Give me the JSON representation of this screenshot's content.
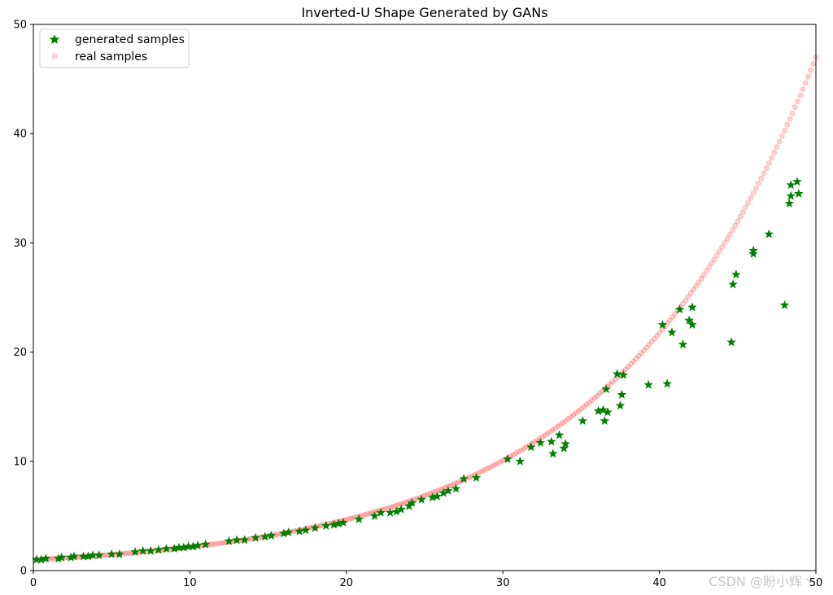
{
  "watermark": "CSDN @盼小辉丶",
  "chart_data": {
    "type": "scatter",
    "title": "Inverted-U Shape Generated by GANs",
    "xlim": [
      0,
      50
    ],
    "ylim": [
      0,
      50
    ],
    "xticks": [
      0,
      10,
      20,
      30,
      40,
      50
    ],
    "yticks": [
      0,
      10,
      20,
      30,
      40,
      50
    ],
    "grid": false,
    "legend_position": "top-left",
    "series": [
      {
        "name": "generated samples",
        "marker": "star",
        "color": "#008000",
        "points": [
          [
            0.2,
            1.0
          ],
          [
            0.5,
            1.0
          ],
          [
            0.8,
            1.1
          ],
          [
            1.6,
            1.1
          ],
          [
            1.8,
            1.2
          ],
          [
            2.4,
            1.2
          ],
          [
            2.6,
            1.3
          ],
          [
            3.2,
            1.3
          ],
          [
            3.5,
            1.3
          ],
          [
            3.8,
            1.4
          ],
          [
            4.2,
            1.4
          ],
          [
            5.0,
            1.5
          ],
          [
            5.5,
            1.5
          ],
          [
            6.5,
            1.7
          ],
          [
            7.0,
            1.8
          ],
          [
            7.5,
            1.8
          ],
          [
            8.0,
            1.9
          ],
          [
            8.5,
            2.0
          ],
          [
            9.0,
            2.0
          ],
          [
            9.3,
            2.1
          ],
          [
            9.6,
            2.1
          ],
          [
            9.9,
            2.2
          ],
          [
            10.2,
            2.2
          ],
          [
            10.5,
            2.3
          ],
          [
            11.0,
            2.4
          ],
          [
            12.5,
            2.7
          ],
          [
            13.0,
            2.8
          ],
          [
            13.5,
            2.8
          ],
          [
            14.2,
            3.0
          ],
          [
            14.8,
            3.1
          ],
          [
            15.2,
            3.2
          ],
          [
            16.0,
            3.4
          ],
          [
            16.3,
            3.5
          ],
          [
            17.0,
            3.6
          ],
          [
            17.4,
            3.7
          ],
          [
            18.0,
            3.9
          ],
          [
            18.7,
            4.1
          ],
          [
            19.2,
            4.2
          ],
          [
            19.5,
            4.3
          ],
          [
            19.8,
            4.4
          ],
          [
            20.8,
            4.7
          ],
          [
            21.8,
            5.0
          ],
          [
            22.2,
            5.3
          ],
          [
            22.8,
            5.3
          ],
          [
            23.2,
            5.4
          ],
          [
            23.5,
            5.6
          ],
          [
            24.0,
            5.9
          ],
          [
            24.2,
            6.2
          ],
          [
            24.8,
            6.5
          ],
          [
            25.5,
            6.7
          ],
          [
            25.8,
            6.8
          ],
          [
            26.2,
            7.1
          ],
          [
            26.5,
            7.3
          ],
          [
            27.0,
            7.5
          ],
          [
            27.5,
            8.4
          ],
          [
            28.3,
            8.5
          ],
          [
            30.3,
            10.2
          ],
          [
            31.1,
            10.0
          ],
          [
            31.8,
            11.3
          ],
          [
            32.4,
            11.7
          ],
          [
            33.1,
            11.8
          ],
          [
            33.2,
            10.7
          ],
          [
            33.6,
            12.4
          ],
          [
            33.9,
            11.2
          ],
          [
            34.0,
            11.6
          ],
          [
            35.1,
            13.7
          ],
          [
            36.1,
            14.6
          ],
          [
            36.4,
            14.7
          ],
          [
            36.5,
            13.7
          ],
          [
            36.6,
            16.6
          ],
          [
            36.7,
            14.5
          ],
          [
            37.3,
            18.0
          ],
          [
            37.5,
            15.1
          ],
          [
            37.6,
            16.1
          ],
          [
            37.7,
            17.9
          ],
          [
            39.3,
            17.0
          ],
          [
            40.2,
            22.5
          ],
          [
            40.5,
            17.1
          ],
          [
            40.8,
            21.8
          ],
          [
            41.3,
            23.9
          ],
          [
            41.5,
            20.7
          ],
          [
            41.9,
            22.9
          ],
          [
            42.1,
            22.5
          ],
          [
            42.1,
            24.1
          ],
          [
            44.6,
            20.9
          ],
          [
            44.7,
            26.2
          ],
          [
            44.9,
            27.1
          ],
          [
            46.0,
            29.0
          ],
          [
            46.0,
            29.3
          ],
          [
            47.0,
            30.8
          ],
          [
            48.0,
            24.3
          ],
          [
            48.3,
            33.6
          ],
          [
            48.4,
            34.3
          ],
          [
            48.4,
            35.3
          ],
          [
            48.8,
            35.6
          ],
          [
            48.9,
            34.5
          ]
        ]
      },
      {
        "name": "real samples",
        "marker": "circle",
        "color": "#ff0000",
        "note_curve": "y = exp(0.077 x), x from 0 to 50",
        "point_count": 300
      }
    ]
  }
}
